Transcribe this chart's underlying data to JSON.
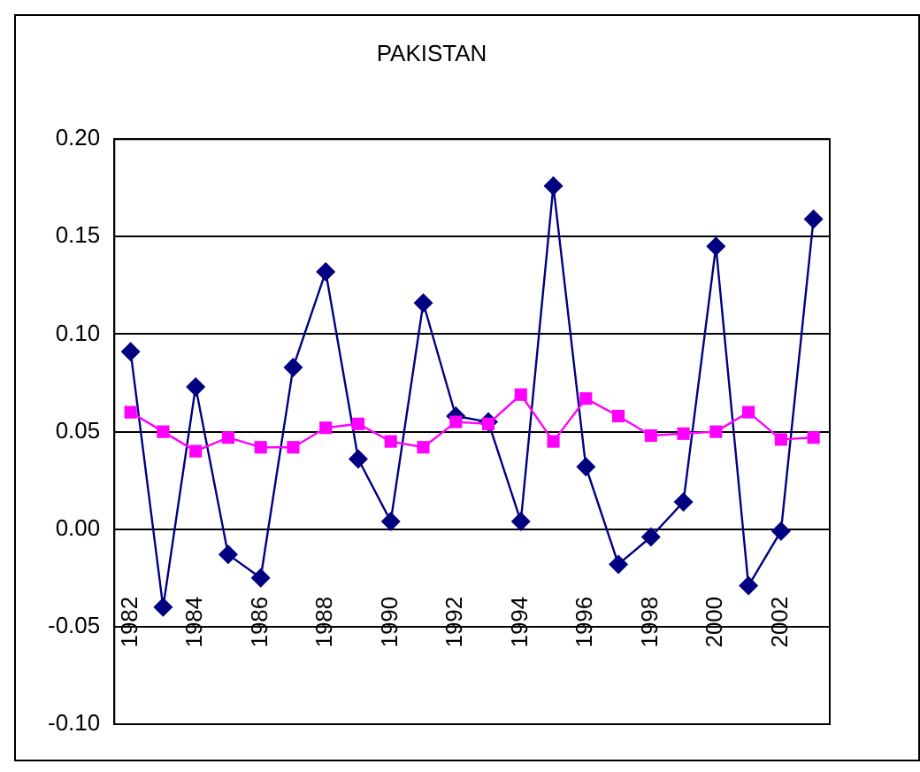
{
  "chart_data": {
    "type": "line",
    "title": "PAKISTAN",
    "categories": [
      "1982",
      null,
      "1984",
      null,
      "1986",
      null,
      "1988",
      null,
      "1990",
      null,
      "1992",
      null,
      "1994",
      null,
      "1996",
      null,
      "1998",
      null,
      "2000",
      null,
      "2002",
      null
    ],
    "series": [
      {
        "color": "#000080",
        "marker": "diamond",
        "values": [
          0.091,
          -0.04,
          0.073,
          -0.013,
          -0.025,
          0.083,
          0.132,
          0.036,
          0.004,
          0.116,
          0.058,
          0.055,
          0.004,
          0.176,
          0.032,
          -0.018,
          -0.004,
          0.014,
          0.145,
          -0.029,
          -0.001,
          0.159
        ]
      },
      {
        "color": "#ff00ff",
        "marker": "square",
        "values": [
          0.06,
          0.05,
          0.04,
          0.047,
          0.042,
          0.042,
          0.052,
          0.054,
          0.045,
          0.042,
          0.055,
          0.054,
          0.069,
          0.045,
          0.067,
          0.058,
          0.048,
          0.049,
          0.05,
          0.06,
          0.046,
          0.047
        ]
      }
    ],
    "ylim": [
      -0.1,
      0.2
    ],
    "yticks": [
      {
        "value": -0.1,
        "label": "-0.10"
      },
      {
        "value": -0.05,
        "label": "-0.05"
      },
      {
        "value": 0,
        "label": "0.00"
      },
      {
        "value": 0.05,
        "label": "0.05"
      },
      {
        "value": 0.1,
        "label": "0.10"
      },
      {
        "value": 0.15,
        "label": "0.15"
      },
      {
        "value": 0.2,
        "label": "0.20"
      }
    ],
    "grid": "y",
    "legend": false
  }
}
